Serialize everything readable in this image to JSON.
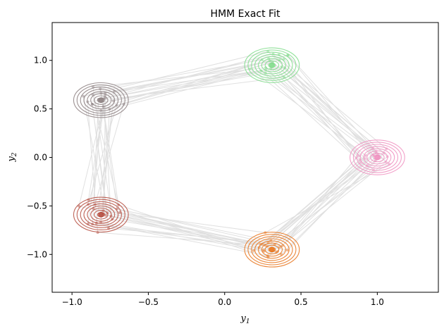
{
  "chart_data": {
    "type": "scatter",
    "title": "HMM Exact Fit",
    "xlabel": "y",
    "xlabel_subscript": "1",
    "ylabel": "y",
    "ylabel_subscript": "2",
    "xlim": [
      -1.13,
      1.4
    ],
    "ylim": [
      -1.39,
      1.39
    ],
    "xticks": [
      -1.0,
      -0.5,
      0.0,
      0.5,
      1.0
    ],
    "xtick_labels": [
      "−1.0",
      "−0.5",
      "0.0",
      "0.5",
      "1.0"
    ],
    "yticks": [
      -1.0,
      -0.5,
      0.0,
      0.5,
      1.0
    ],
    "ytick_labels": [
      "−1.0",
      "−0.5",
      "0.0",
      "0.5",
      "1.0"
    ],
    "grid": false,
    "legend": "none",
    "trajectory_color": "#dddddd",
    "states": [
      {
        "center": [
          0.31,
          0.95
        ],
        "color": "#7fdc8a"
      },
      {
        "center": [
          1.0,
          0.0
        ],
        "color": "#f08fbf"
      },
      {
        "center": [
          0.31,
          -0.95
        ],
        "color": "#e8731a"
      },
      {
        "center": [
          -0.81,
          -0.59
        ],
        "color": "#b44a3c"
      },
      {
        "center": [
          -0.81,
          0.59
        ],
        "color": "#8c7f80"
      }
    ],
    "state_sequence": [
      0,
      1,
      2,
      3,
      4,
      0,
      1,
      2,
      3,
      4,
      0,
      1,
      2,
      3,
      4,
      0,
      1,
      2,
      3,
      4,
      0,
      1,
      2,
      3,
      4,
      0,
      1,
      2,
      3,
      4,
      0,
      1,
      2,
      3,
      4,
      0,
      1,
      2,
      3,
      4,
      0,
      1,
      2,
      3,
      4,
      0,
      1,
      2,
      3,
      4,
      0,
      1,
      2,
      3,
      4,
      0,
      1,
      2,
      3,
      4,
      0,
      1,
      2,
      3,
      4,
      0,
      1,
      2,
      3,
      4,
      0,
      1,
      2,
      3,
      4,
      0,
      1,
      2,
      3,
      4,
      0,
      1,
      2,
      3,
      4,
      0,
      1,
      2,
      3,
      4,
      0,
      1,
      2,
      3,
      4,
      0,
      1,
      2,
      3,
      4
    ]
  }
}
